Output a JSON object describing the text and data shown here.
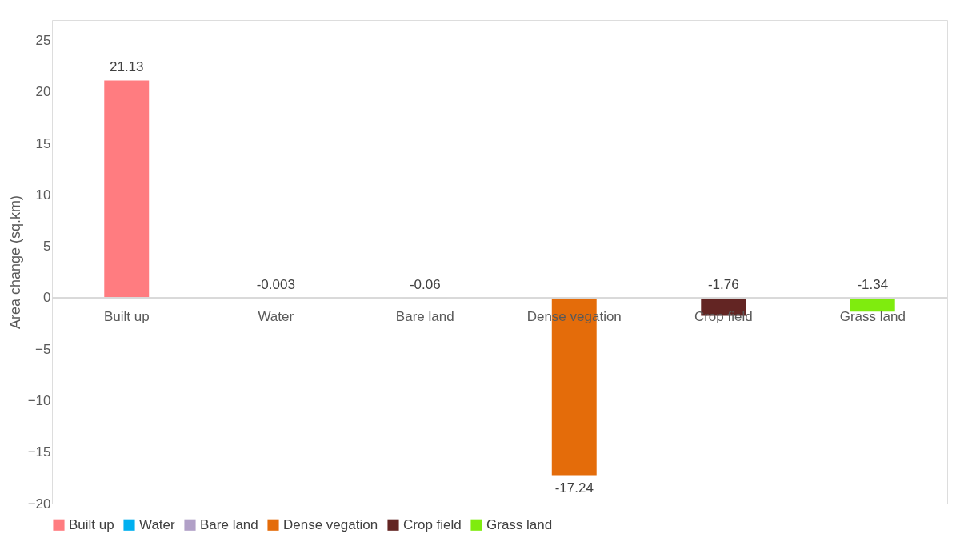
{
  "chart_data": {
    "type": "bar",
    "ylabel": "Area change (sq.km)",
    "categories": [
      "Built up",
      "Water",
      "Bare land",
      "Dense vegation",
      "Crop field",
      "Grass land"
    ],
    "series": [
      {
        "name": "Built up",
        "color": "#ff7c80",
        "values": [
          21.13,
          null,
          null,
          null,
          null,
          null
        ]
      },
      {
        "name": "Water",
        "color": "#00b0f0",
        "values": [
          null,
          -0.003,
          null,
          null,
          null,
          null
        ]
      },
      {
        "name": "Bare land",
        "color": "#b1a0c7",
        "values": [
          null,
          null,
          -0.06,
          null,
          null,
          null
        ]
      },
      {
        "name": "Dense vegation",
        "color": "#e46c0a",
        "values": [
          null,
          null,
          null,
          -17.24,
          null,
          null
        ]
      },
      {
        "name": "Crop field",
        "color": "#632523",
        "values": [
          null,
          null,
          null,
          null,
          -1.76,
          null
        ]
      },
      {
        "name": "Grass land",
        "color": "#7fec0e",
        "values": [
          null,
          null,
          null,
          null,
          null,
          -1.34
        ]
      }
    ],
    "ylim": [
      -20,
      27
    ],
    "yticks": [
      -20,
      -15,
      -10,
      -5,
      0,
      5,
      10,
      15,
      20,
      25
    ],
    "data_labels": true,
    "grid": false,
    "legend": "bottom"
  }
}
